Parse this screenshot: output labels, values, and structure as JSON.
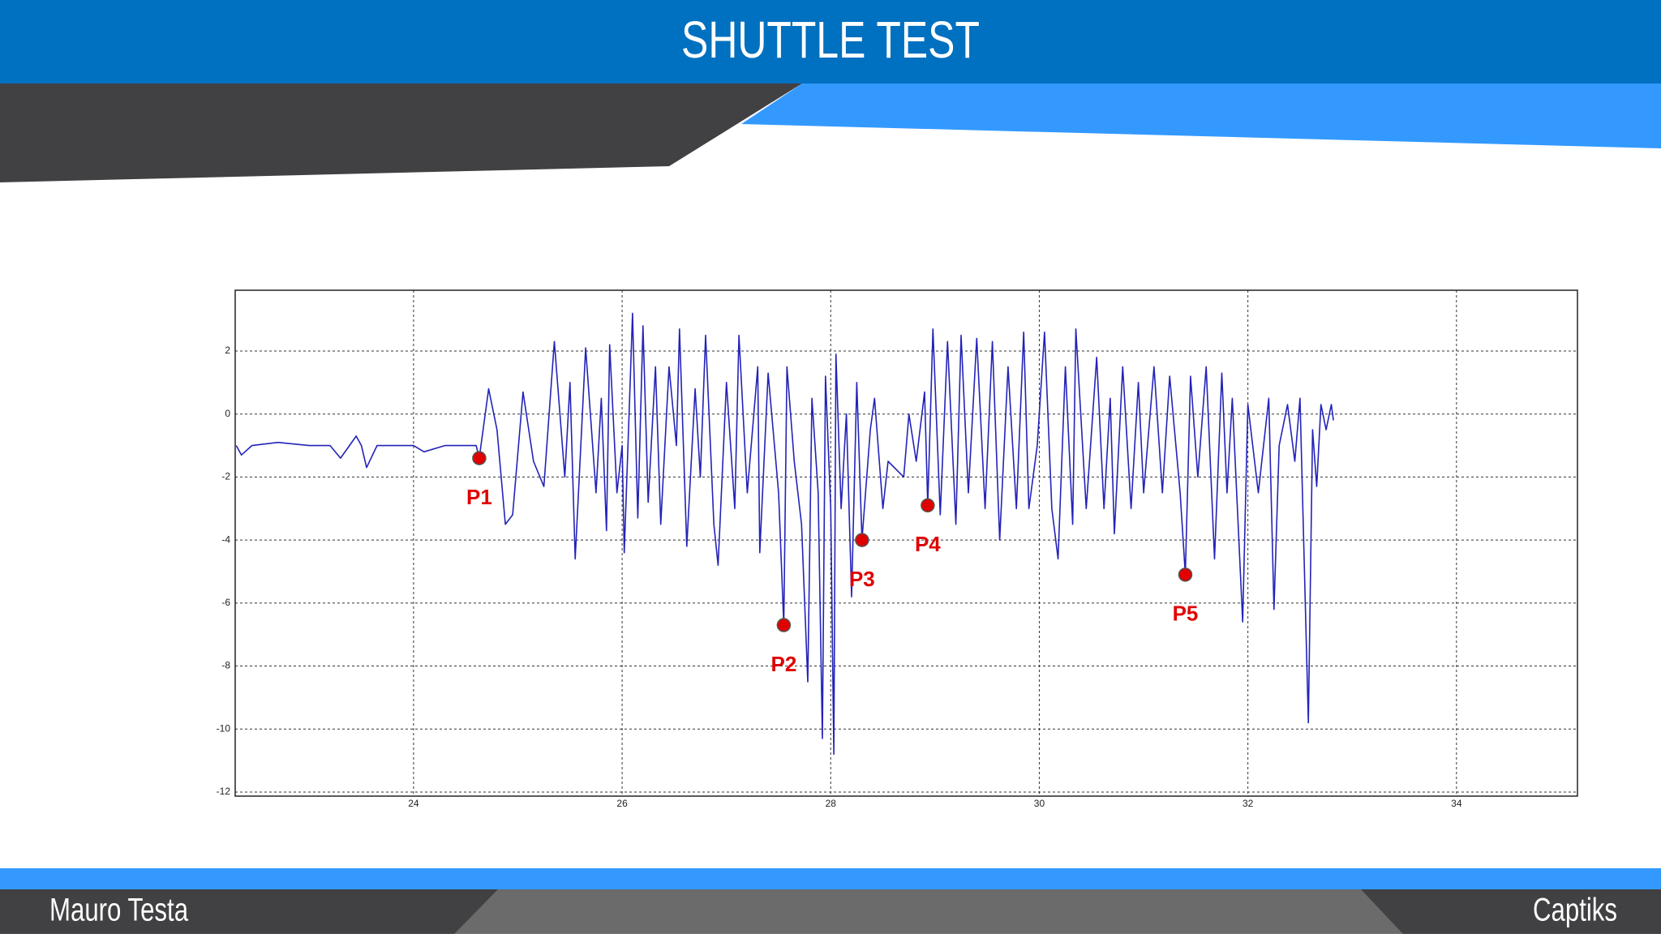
{
  "chart_data": {
    "type": "line",
    "title": "SHUTTLE TEST",
    "x": [
      22.3,
      22.35,
      22.45,
      22.7,
      23.0,
      23.2,
      23.3,
      23.45,
      23.5,
      23.55,
      23.65,
      24.0,
      24.1,
      24.3,
      24.6,
      24.63,
      24.72,
      24.8,
      24.88,
      24.95,
      25.05,
      25.15,
      25.25,
      25.35,
      25.45,
      25.5,
      25.55,
      25.65,
      25.75,
      25.8,
      25.85,
      25.88,
      25.95,
      26.0,
      26.02,
      26.08,
      26.1,
      26.15,
      26.2,
      26.25,
      26.32,
      26.37,
      26.45,
      26.52,
      26.55,
      26.62,
      26.7,
      26.75,
      26.8,
      26.88,
      26.92,
      27.0,
      27.08,
      27.12,
      27.2,
      27.3,
      27.32,
      27.4,
      27.5,
      27.55,
      27.58,
      27.65,
      27.72,
      27.78,
      27.82,
      27.88,
      27.92,
      27.95,
      28.0,
      28.03,
      28.05,
      28.1,
      28.15,
      28.2,
      28.25,
      28.3,
      28.38,
      28.42,
      28.5,
      28.55,
      28.7,
      28.75,
      28.82,
      28.9,
      28.93,
      28.98,
      29.05,
      29.12,
      29.2,
      29.25,
      29.32,
      29.4,
      29.48,
      29.55,
      29.62,
      29.7,
      29.78,
      29.85,
      29.9,
      29.98,
      30.05,
      30.12,
      30.18,
      30.25,
      30.32,
      30.35,
      30.45,
      30.55,
      30.62,
      30.68,
      30.72,
      30.8,
      30.88,
      30.95,
      31.0,
      31.1,
      31.18,
      31.25,
      31.35,
      31.4,
      31.45,
      31.52,
      31.6,
      31.68,
      31.75,
      31.8,
      31.85,
      31.95,
      32.0,
      32.1,
      32.2,
      32.25,
      32.3,
      32.38,
      32.45,
      32.5,
      32.58,
      32.62,
      32.66,
      32.7,
      32.75,
      32.8,
      32.82
    ],
    "series": [
      {
        "color": "#2323b8",
        "values": [
          -1.0,
          -1.3,
          -1.0,
          -0.9,
          -1.0,
          -1.0,
          -1.4,
          -0.7,
          -1.0,
          -1.7,
          -1.0,
          -1.0,
          -1.2,
          -1.0,
          -1.0,
          -1.4,
          0.8,
          -0.5,
          -3.5,
          -3.2,
          0.7,
          -1.5,
          -2.3,
          2.3,
          -2.0,
          1.0,
          -4.6,
          2.1,
          -2.5,
          0.5,
          -3.7,
          2.2,
          -2.5,
          -1.0,
          -4.4,
          1.3,
          3.2,
          -3.3,
          2.8,
          -2.8,
          1.5,
          -3.5,
          1.5,
          -1.0,
          2.7,
          -4.2,
          0.8,
          -2.0,
          2.5,
          -3.5,
          -4.8,
          1.0,
          -3.0,
          2.5,
          -2.5,
          1.5,
          -4.4,
          1.3,
          -2.5,
          -6.7,
          1.5,
          -1.5,
          -3.5,
          -8.5,
          0.5,
          -2.5,
          -10.3,
          1.2,
          -3.0,
          -10.8,
          1.9,
          -3.0,
          0.0,
          -5.8,
          1.0,
          -4.0,
          -0.5,
          0.5,
          -3.0,
          -1.5,
          -2.0,
          0.0,
          -1.5,
          0.7,
          -2.9,
          2.7,
          -3.2,
          2.3,
          -3.5,
          2.5,
          -2.5,
          2.4,
          -3.0,
          2.3,
          -4.0,
          1.5,
          -3.0,
          2.6,
          -3.0,
          -1.0,
          2.6,
          -3.0,
          -4.6,
          1.5,
          -3.5,
          2.7,
          -3.0,
          1.8,
          -3.0,
          0.5,
          -3.8,
          1.5,
          -3.0,
          1.0,
          -2.5,
          1.5,
          -2.5,
          1.2,
          -2.5,
          -5.1,
          1.2,
          -2.0,
          1.5,
          -4.6,
          1.3,
          -2.5,
          0.5,
          -6.6,
          0.3,
          -2.5,
          0.5,
          -6.2,
          -1.0,
          0.3,
          -1.5,
          0.5,
          -9.8,
          -0.5,
          -2.3,
          0.3,
          -0.5,
          0.3,
          -0.2
        ]
      }
    ],
    "annotations": [
      {
        "label": "P1",
        "x": 24.63,
        "y": -1.4,
        "color": "#e00000"
      },
      {
        "label": "P2",
        "x": 27.55,
        "y": -6.7,
        "color": "#e00000"
      },
      {
        "label": "P3",
        "x": 28.3,
        "y": -4.0,
        "color": "#e00000"
      },
      {
        "label": "P4",
        "x": 28.93,
        "y": -2.9,
        "color": "#e00000"
      },
      {
        "label": "P5",
        "x": 31.4,
        "y": -5.1,
        "color": "#e00000"
      }
    ],
    "xlim": [
      22.29,
      35.16
    ],
    "xticks": [
      24,
      26,
      28,
      30,
      32,
      34
    ],
    "ylim": [
      -12.13,
      3.93
    ],
    "yticks": [
      2,
      0,
      -2,
      -4,
      -6,
      -8,
      -10,
      -12
    ],
    "grid": true
  },
  "footer": {
    "left": "Mauro Testa",
    "right": "Captiks"
  }
}
